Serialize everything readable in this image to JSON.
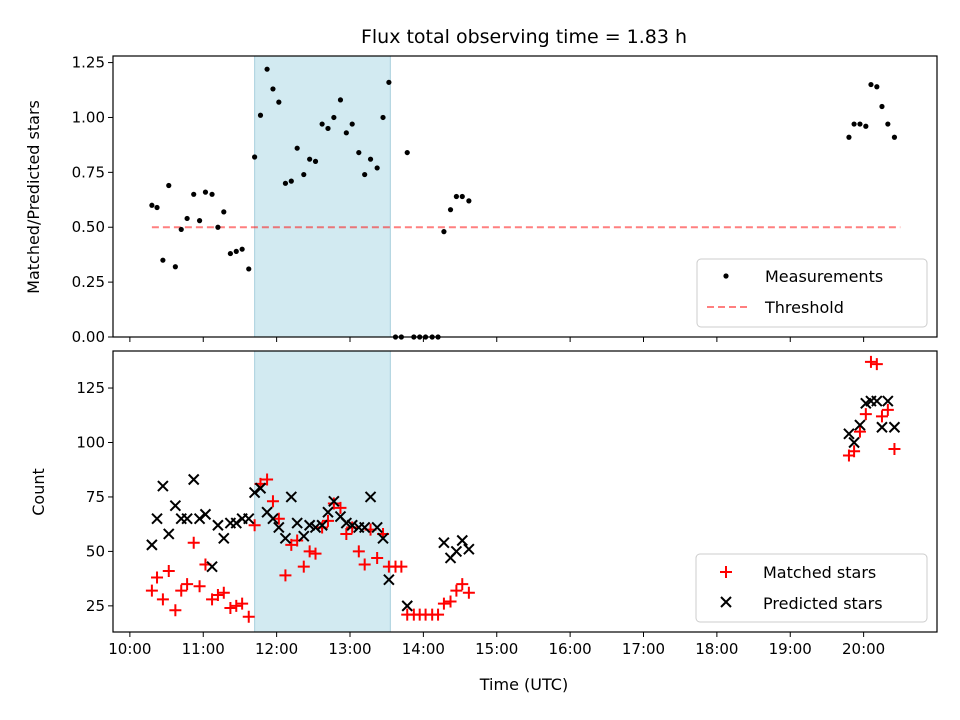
{
  "chart_data": [
    {
      "type": "scatter",
      "title": "Flux total observing time = 1.83 h",
      "xlabel": "",
      "ylabel": "Matched/Predicted stars",
      "x_unit": "hours (UTC)",
      "xlim": [
        9.77,
        21.0
      ],
      "ylim": [
        0.0,
        1.28
      ],
      "yticks": [
        0.0,
        0.25,
        0.5,
        0.75,
        1.0,
        1.25
      ],
      "ytick_labels": [
        "0.00",
        "0.25",
        "0.50",
        "0.75",
        "1.00",
        "1.25"
      ],
      "xticks": [
        10,
        11,
        12,
        13,
        14,
        15,
        16,
        17,
        18,
        19,
        20
      ],
      "xtick_labels": [],
      "shaded_span": {
        "x0": 11.7,
        "x1": 13.55,
        "color": "#add8e6"
      },
      "threshold": {
        "name": "Threshold",
        "y": 0.5,
        "x0": 10.3,
        "x1": 20.5,
        "color": "#ff0000"
      },
      "series": [
        {
          "name": "Measurements",
          "marker": "dot",
          "color": "#000000",
          "points": [
            [
              10.3,
              0.6
            ],
            [
              10.37,
              0.59
            ],
            [
              10.45,
              0.35
            ],
            [
              10.53,
              0.69
            ],
            [
              10.62,
              0.32
            ],
            [
              10.7,
              0.49
            ],
            [
              10.78,
              0.54
            ],
            [
              10.87,
              0.65
            ],
            [
              10.95,
              0.53
            ],
            [
              11.03,
              0.66
            ],
            [
              11.12,
              0.65
            ],
            [
              11.2,
              0.5
            ],
            [
              11.28,
              0.57
            ],
            [
              11.37,
              0.38
            ],
            [
              11.45,
              0.39
            ],
            [
              11.53,
              0.4
            ],
            [
              11.62,
              0.31
            ],
            [
              11.7,
              0.82
            ],
            [
              11.78,
              1.01
            ],
            [
              11.87,
              1.22
            ],
            [
              11.95,
              1.13
            ],
            [
              12.03,
              1.07
            ],
            [
              12.12,
              0.7
            ],
            [
              12.2,
              0.71
            ],
            [
              12.28,
              0.86
            ],
            [
              12.37,
              0.74
            ],
            [
              12.45,
              0.81
            ],
            [
              12.53,
              0.8
            ],
            [
              12.62,
              0.97
            ],
            [
              12.7,
              0.95
            ],
            [
              12.78,
              1.0
            ],
            [
              12.87,
              1.08
            ],
            [
              12.95,
              0.93
            ],
            [
              13.03,
              0.97
            ],
            [
              13.12,
              0.84
            ],
            [
              13.2,
              0.74
            ],
            [
              13.28,
              0.81
            ],
            [
              13.37,
              0.77
            ],
            [
              13.45,
              1.0
            ],
            [
              13.53,
              1.16
            ],
            [
              13.62,
              0.0
            ],
            [
              13.7,
              0.0
            ],
            [
              13.78,
              0.84
            ],
            [
              13.87,
              0.0
            ],
            [
              13.95,
              0.0
            ],
            [
              14.03,
              0.0
            ],
            [
              14.12,
              0.0
            ],
            [
              14.2,
              0.0
            ],
            [
              14.28,
              0.48
            ],
            [
              14.37,
              0.58
            ],
            [
              14.45,
              0.64
            ],
            [
              14.53,
              0.64
            ],
            [
              14.62,
              0.62
            ],
            [
              19.8,
              0.91
            ],
            [
              19.87,
              0.97
            ],
            [
              19.95,
              0.97
            ],
            [
              20.03,
              0.96
            ],
            [
              20.1,
              1.15
            ],
            [
              20.18,
              1.14
            ],
            [
              20.25,
              1.05
            ],
            [
              20.33,
              0.97
            ],
            [
              20.42,
              0.91
            ]
          ]
        }
      ],
      "legend": {
        "position": "bottom-right",
        "entries": [
          "Measurements",
          "Threshold"
        ]
      }
    },
    {
      "type": "scatter",
      "title": "",
      "xlabel": "Time (UTC)",
      "ylabel": "Count",
      "x_unit": "hours (UTC)",
      "xlim": [
        9.77,
        21.0
      ],
      "ylim": [
        13,
        142
      ],
      "yticks": [
        25,
        50,
        75,
        100,
        125
      ],
      "ytick_labels": [
        "25",
        "50",
        "75",
        "100",
        "125"
      ],
      "xticks": [
        10,
        11,
        12,
        13,
        14,
        15,
        16,
        17,
        18,
        19,
        20
      ],
      "xtick_labels": [
        "10:00",
        "11:00",
        "12:00",
        "13:00",
        "14:00",
        "15:00",
        "16:00",
        "17:00",
        "18:00",
        "19:00",
        "20:00"
      ],
      "shaded_span": {
        "x0": 11.7,
        "x1": 13.55,
        "color": "#add8e6"
      },
      "series": [
        {
          "name": "Matched stars",
          "marker": "plus",
          "color": "#ff0000",
          "points": [
            [
              10.3,
              32
            ],
            [
              10.37,
              38
            ],
            [
              10.45,
              28
            ],
            [
              10.53,
              41
            ],
            [
              10.62,
              23
            ],
            [
              10.7,
              32
            ],
            [
              10.78,
              35
            ],
            [
              10.87,
              54
            ],
            [
              10.95,
              34
            ],
            [
              11.03,
              44
            ],
            [
              11.12,
              28
            ],
            [
              11.2,
              30
            ],
            [
              11.28,
              31
            ],
            [
              11.37,
              24
            ],
            [
              11.45,
              25
            ],
            [
              11.53,
              26
            ],
            [
              11.62,
              20
            ],
            [
              11.7,
              62
            ],
            [
              11.78,
              81
            ],
            [
              11.87,
              83
            ],
            [
              11.95,
              73
            ],
            [
              12.03,
              65
            ],
            [
              12.12,
              39
            ],
            [
              12.2,
              53
            ],
            [
              12.28,
              55
            ],
            [
              12.37,
              43
            ],
            [
              12.45,
              50
            ],
            [
              12.53,
              49
            ],
            [
              12.62,
              61
            ],
            [
              12.7,
              64
            ],
            [
              12.78,
              72
            ],
            [
              12.87,
              70
            ],
            [
              12.95,
              58
            ],
            [
              13.03,
              61
            ],
            [
              13.12,
              50
            ],
            [
              13.2,
              44
            ],
            [
              13.28,
              60
            ],
            [
              13.37,
              47
            ],
            [
              13.45,
              58
            ],
            [
              13.53,
              43
            ],
            [
              13.62,
              43
            ],
            [
              13.7,
              43
            ],
            [
              13.78,
              21
            ],
            [
              13.87,
              21
            ],
            [
              13.95,
              21
            ],
            [
              14.03,
              21
            ],
            [
              14.12,
              21
            ],
            [
              14.2,
              21
            ],
            [
              14.28,
              26
            ],
            [
              14.37,
              27
            ],
            [
              14.45,
              32
            ],
            [
              14.53,
              35
            ],
            [
              14.62,
              31
            ],
            [
              19.8,
              94
            ],
            [
              19.87,
              96
            ],
            [
              19.95,
              105
            ],
            [
              20.03,
              113
            ],
            [
              20.1,
              137
            ],
            [
              20.18,
              136
            ],
            [
              20.25,
              112
            ],
            [
              20.33,
              115
            ],
            [
              20.42,
              97
            ]
          ]
        },
        {
          "name": "Predicted stars",
          "marker": "x",
          "color": "#000000",
          "points": [
            [
              10.3,
              53
            ],
            [
              10.37,
              65
            ],
            [
              10.45,
              80
            ],
            [
              10.53,
              58
            ],
            [
              10.62,
              71
            ],
            [
              10.7,
              65
            ],
            [
              10.78,
              65
            ],
            [
              10.87,
              83
            ],
            [
              10.95,
              65
            ],
            [
              11.03,
              67
            ],
            [
              11.12,
              43
            ],
            [
              11.2,
              62
            ],
            [
              11.28,
              56
            ],
            [
              11.37,
              63
            ],
            [
              11.45,
              63
            ],
            [
              11.53,
              65
            ],
            [
              11.62,
              65
            ],
            [
              11.7,
              77
            ],
            [
              11.78,
              79
            ],
            [
              11.87,
              68
            ],
            [
              11.95,
              65
            ],
            [
              12.03,
              61
            ],
            [
              12.12,
              56
            ],
            [
              12.2,
              75
            ],
            [
              12.28,
              63
            ],
            [
              12.37,
              57
            ],
            [
              12.45,
              62
            ],
            [
              12.53,
              61
            ],
            [
              12.62,
              62
            ],
            [
              12.7,
              68
            ],
            [
              12.78,
              73
            ],
            [
              12.87,
              66
            ],
            [
              12.95,
              63
            ],
            [
              13.03,
              62
            ],
            [
              13.12,
              61
            ],
            [
              13.2,
              61
            ],
            [
              13.28,
              75
            ],
            [
              13.37,
              61
            ],
            [
              13.45,
              56
            ],
            [
              13.53,
              37
            ],
            [
              13.78,
              25
            ],
            [
              14.28,
              54
            ],
            [
              14.37,
              47
            ],
            [
              14.45,
              50
            ],
            [
              14.53,
              55
            ],
            [
              14.62,
              51
            ],
            [
              19.8,
              104
            ],
            [
              19.87,
              100
            ],
            [
              19.95,
              108
            ],
            [
              20.03,
              118
            ],
            [
              20.1,
              119
            ],
            [
              20.18,
              119
            ],
            [
              20.25,
              107
            ],
            [
              20.33,
              119
            ],
            [
              20.42,
              107
            ]
          ]
        }
      ],
      "legend": {
        "position": "bottom-right",
        "entries": [
          "Matched stars",
          "Predicted stars"
        ]
      }
    }
  ]
}
